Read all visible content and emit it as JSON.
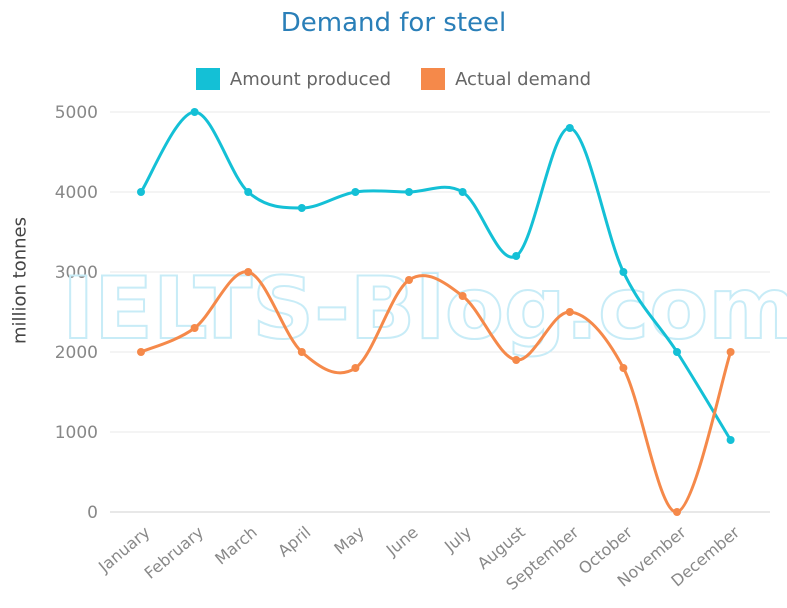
{
  "chart_data": {
    "type": "line",
    "title": "Demand for steel",
    "ylabel": "million tonnes",
    "xlabel": "",
    "categories": [
      "January",
      "February",
      "March",
      "April",
      "May",
      "June",
      "July",
      "August",
      "September",
      "October",
      "November",
      "December"
    ],
    "ylim": [
      0,
      5000
    ],
    "yticks": [
      0,
      1000,
      2000,
      3000,
      4000,
      5000
    ],
    "grid": true,
    "legend_position": "top-center",
    "series": [
      {
        "name": "Amount produced",
        "color": "#14c0d6",
        "values": [
          4000,
          5000,
          4000,
          3800,
          4000,
          4000,
          4000,
          3200,
          4800,
          3000,
          2000,
          900
        ]
      },
      {
        "name": "Actual demand",
        "color": "#f5894a",
        "values": [
          2000,
          2300,
          3000,
          2000,
          1800,
          2900,
          2700,
          1900,
          2500,
          1800,
          0,
          2000
        ]
      }
    ]
  },
  "watermark": "IELTS-Blog.com"
}
